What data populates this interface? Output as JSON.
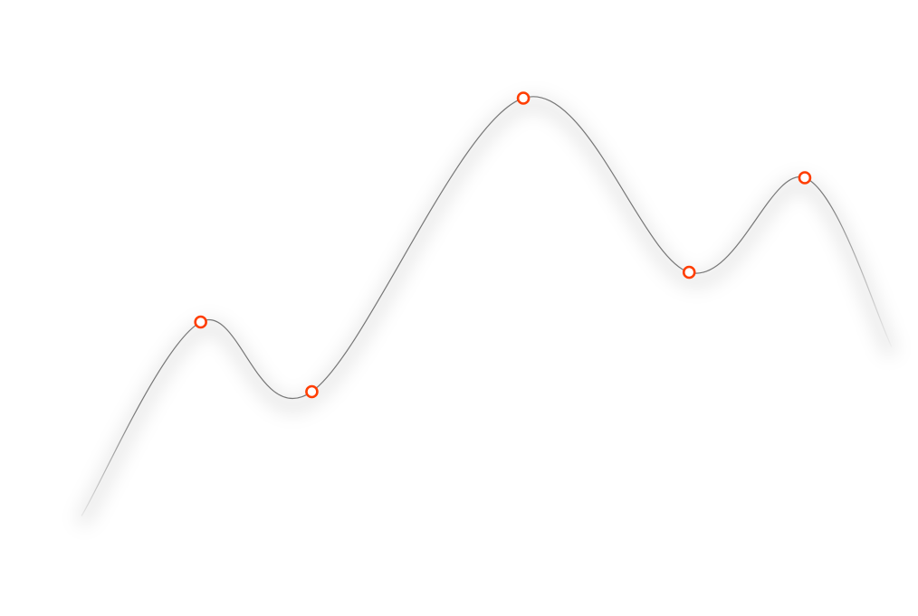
{
  "chart_data": {
    "type": "line",
    "title": "",
    "xlabel": "",
    "ylabel": "",
    "xlim": [
      0,
      9.3
    ],
    "ylim": [
      0,
      11
    ],
    "grid": false,
    "legend": "none",
    "smooth": true,
    "line_color": "#777777",
    "marker_color": "#ff3d00",
    "series": [
      {
        "x": [
          0,
          1.33,
          2.57,
          4.93,
          6.78,
          8.07,
          9.04
        ],
        "values": [
          0.9,
          4.8,
          3.4,
          9.3,
          5.8,
          7.7,
          4.3
        ],
        "markers": [
          false,
          true,
          true,
          true,
          true,
          true,
          false
        ]
      }
    ]
  }
}
